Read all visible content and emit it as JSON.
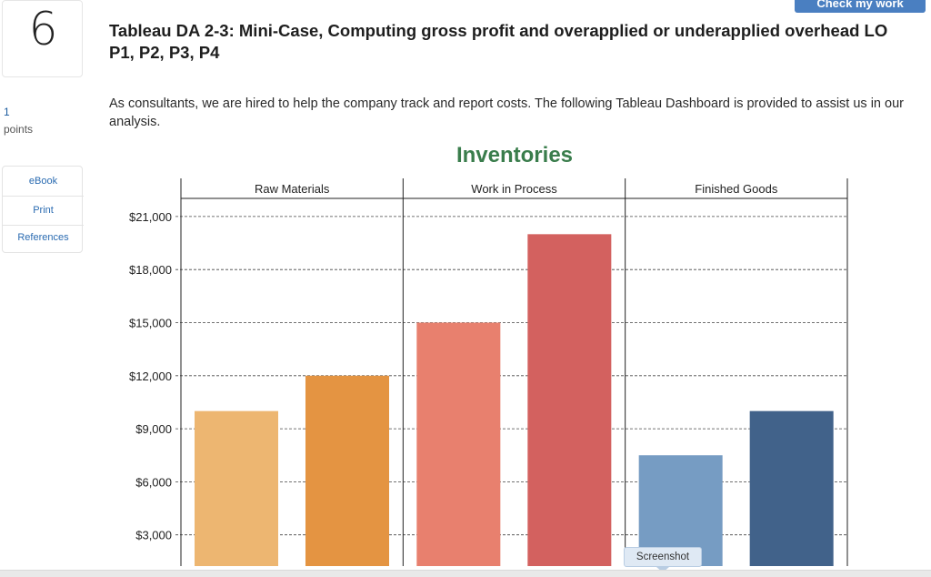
{
  "header": {
    "check_button_label": "Check my work"
  },
  "question": {
    "number": "6",
    "points_value": "1",
    "points_label": "points",
    "title": "Tableau DA 2-3: Mini-Case, Computing gross profit and overapplied or underapplied overhead LO P1, P2, P3, P4",
    "intro": "As consultants, we are hired to help the company track and report costs. The following Tableau Dashboard is provided to assist us in our analysis."
  },
  "side_links": {
    "ebook": "eBook",
    "print": "Print",
    "references": "References"
  },
  "screenshot_button": "Screenshot",
  "chart_data": {
    "type": "bar",
    "title": "Inventories",
    "panels": [
      "Raw Materials",
      "Work in Process",
      "Finished Goods"
    ],
    "ylim": [
      0,
      22500
    ],
    "yticks": [
      3000,
      6000,
      9000,
      12000,
      15000,
      18000,
      21000
    ],
    "ytick_labels": [
      "$3,000",
      "$6,000",
      "$9,000",
      "$12,000",
      "$15,000",
      "$18,000",
      "$21,000"
    ],
    "bars": [
      {
        "panel": "Raw Materials",
        "value": 10000,
        "color": "#edb671"
      },
      {
        "panel": "Raw Materials",
        "value": 12000,
        "color": "#e49442"
      },
      {
        "panel": "Work in Process",
        "value": 15000,
        "color": "#e8806e"
      },
      {
        "panel": "Work in Process",
        "value": 20000,
        "color": "#d3615f"
      },
      {
        "panel": "Finished Goods",
        "value": 7500,
        "color": "#769cc3"
      },
      {
        "panel": "Finished Goods",
        "value": 10000,
        "color": "#41628a"
      }
    ],
    "gridlines": "dashed"
  }
}
